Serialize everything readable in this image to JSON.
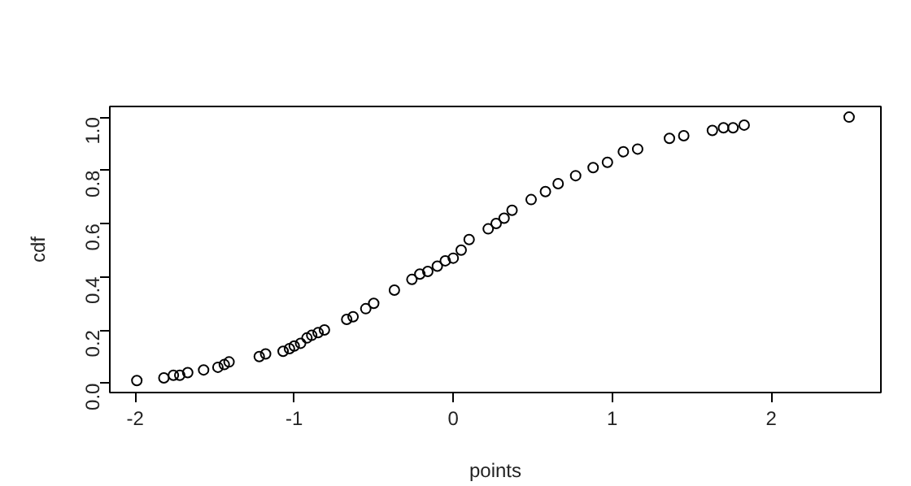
{
  "chart_data": {
    "type": "scatter",
    "xlabel": "points",
    "ylabel": "cdf",
    "x": [
      -1.99,
      -1.82,
      -1.76,
      -1.72,
      -1.67,
      -1.57,
      -1.48,
      -1.44,
      -1.41,
      -1.22,
      -1.18,
      -1.07,
      -1.03,
      -1.0,
      -0.96,
      -0.92,
      -0.89,
      -0.85,
      -0.81,
      -0.67,
      -0.63,
      -0.55,
      -0.5,
      -0.37,
      -0.26,
      -0.21,
      -0.16,
      -0.1,
      -0.05,
      0.0,
      0.05,
      0.1,
      0.22,
      0.27,
      0.32,
      0.37,
      0.49,
      0.58,
      0.66,
      0.77,
      0.88,
      0.97,
      1.07,
      1.16,
      1.36,
      1.45,
      1.63,
      1.7,
      1.76,
      1.83,
      2.49
    ],
    "values": [
      0.01,
      0.02,
      0.03,
      0.03,
      0.04,
      0.05,
      0.06,
      0.07,
      0.08,
      0.1,
      0.11,
      0.12,
      0.13,
      0.14,
      0.15,
      0.17,
      0.18,
      0.19,
      0.2,
      0.24,
      0.25,
      0.28,
      0.3,
      0.35,
      0.39,
      0.41,
      0.42,
      0.44,
      0.46,
      0.47,
      0.5,
      0.54,
      0.58,
      0.6,
      0.62,
      0.65,
      0.69,
      0.72,
      0.75,
      0.78,
      0.81,
      0.83,
      0.87,
      0.88,
      0.92,
      0.93,
      0.95,
      0.96,
      0.96,
      0.97,
      1.0
    ],
    "color": "#000000",
    "marker": "circle",
    "grid": false,
    "xlim": [
      -2.16,
      2.69
    ],
    "ylim": [
      -0.035,
      1.04
    ],
    "xticks": [
      -2,
      -1,
      0,
      1,
      2
    ],
    "yticks": [
      {
        "value": 0,
        "label": "0.0"
      },
      0.2,
      0.4,
      0.6,
      0.8,
      {
        "value": 1,
        "label": "1.0"
      }
    ]
  }
}
